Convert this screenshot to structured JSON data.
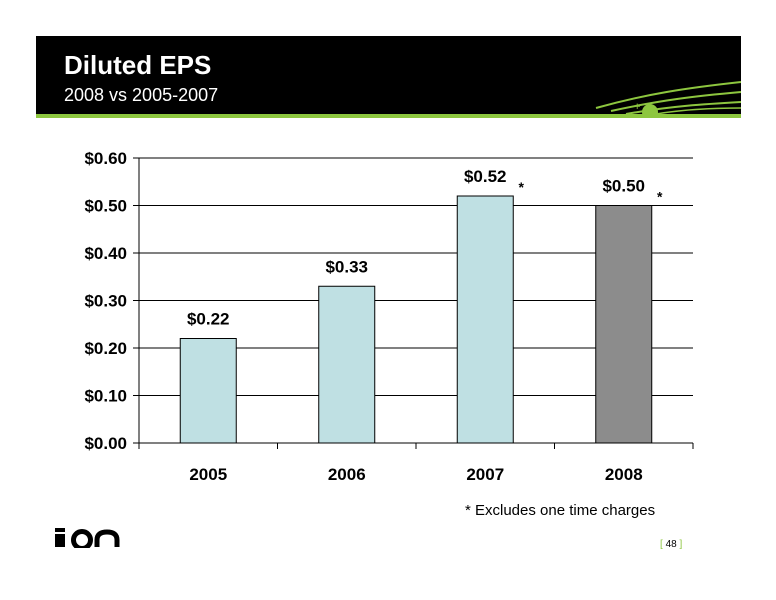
{
  "header": {
    "title": "Diluted EPS",
    "subtitle": "2008 vs 2005-2007"
  },
  "footnote": "* Excludes one time charges",
  "page_number": "48",
  "logo": {
    "name": "ion-logo",
    "text": "ion"
  },
  "colors": {
    "header_bg": "#000000",
    "accent_green": "#8dc63f",
    "bar_light": "#bfe0e3",
    "bar_highlight": "#8c8c8c"
  },
  "chart_data": {
    "type": "bar",
    "title": "",
    "xlabel": "",
    "ylabel": "",
    "categories": [
      "2005",
      "2006",
      "2007",
      "2008"
    ],
    "values": [
      0.22,
      0.33,
      0.52,
      0.5
    ],
    "data_labels": [
      "$0.22",
      "$0.33",
      "$0.52",
      "$0.50"
    ],
    "annotations": [
      "",
      "",
      "*",
      "*"
    ],
    "bar_colors": [
      "#bfe0e3",
      "#bfe0e3",
      "#bfe0e3",
      "#8c8c8c"
    ],
    "ylim": [
      0,
      0.6
    ],
    "yticks": [
      0.0,
      0.1,
      0.2,
      0.3,
      0.4,
      0.5,
      0.6
    ],
    "ytick_labels": [
      "$0.00",
      "$0.10",
      "$0.20",
      "$0.30",
      "$0.40",
      "$0.50",
      "$0.60"
    ],
    "grid": true,
    "legend": "none"
  }
}
